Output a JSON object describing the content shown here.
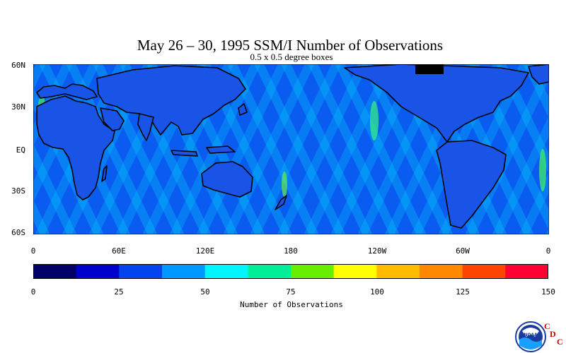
{
  "title": "May 26 – 30, 1995 SSM/I Number of Observations",
  "subtitle": "0.5 x 0.5 degree boxes",
  "lat_labels": [
    "60N",
    "30N",
    "EQ",
    "30S",
    "60S"
  ],
  "lon_labels": [
    "0",
    "60E",
    "120E",
    "180",
    "120W",
    "60W",
    "0"
  ],
  "colorbar": {
    "title": "Number of Observations",
    "tick_labels": [
      "0",
      "25",
      "50",
      "75",
      "100",
      "125",
      "150"
    ],
    "colors": [
      "#000066",
      "#0000cc",
      "#0044ee",
      "#0099ff",
      "#00f5ff",
      "#00ee99",
      "#66ee00",
      "#ffff00",
      "#ffbb00",
      "#ff8800",
      "#ff4400",
      "#ff0033"
    ]
  },
  "map": {
    "coastline_color": "#000000",
    "ocean_color_dominant": "#0066ff",
    "swath_color": "#00ddff"
  },
  "logo": {
    "emblem_text": "NOAA",
    "letters": [
      "C",
      "D",
      "C"
    ]
  }
}
